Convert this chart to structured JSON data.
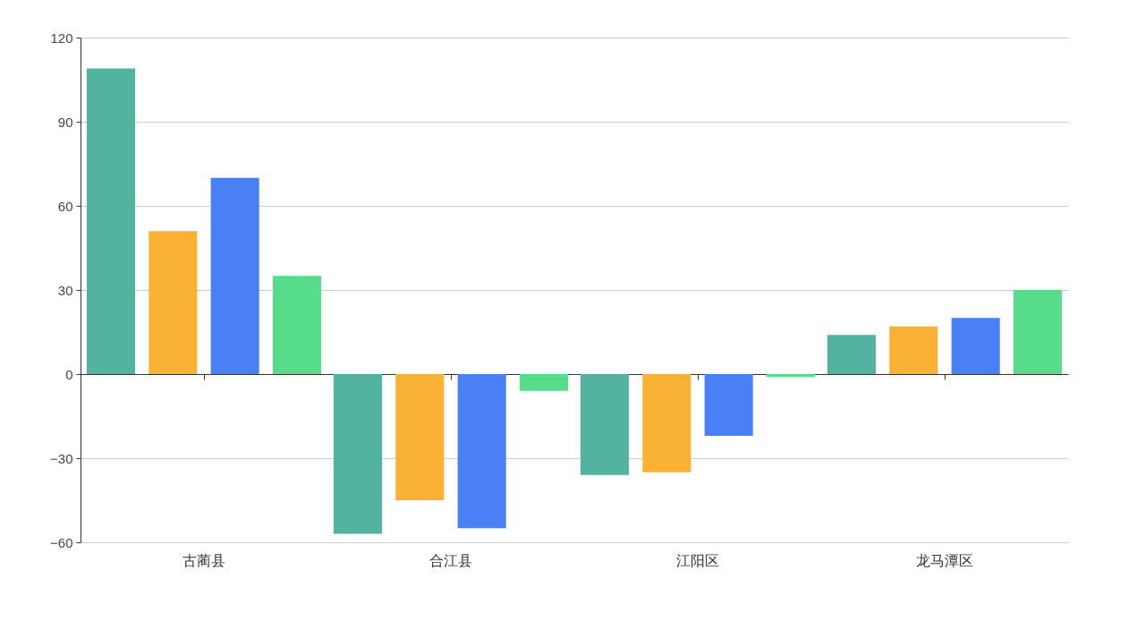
{
  "chart_data": {
    "type": "bar",
    "categories": [
      "古蔺县",
      "合江县",
      "江阳区",
      "龙马潭区"
    ],
    "series": [
      {
        "color": "#52b3a0",
        "values": [
          109,
          -57,
          -36,
          14
        ]
      },
      {
        "color": "#f9b233",
        "values": [
          51,
          -45,
          -35,
          17
        ]
      },
      {
        "color": "#4a80f5",
        "values": [
          70,
          -55,
          -22,
          20
        ]
      },
      {
        "color": "#57dc8a",
        "values": [
          35,
          -6,
          -1,
          30
        ]
      }
    ],
    "ylim": [
      -60,
      120
    ],
    "yticks": [
      -60,
      -30,
      0,
      30,
      60,
      90,
      120
    ],
    "grid": "y"
  }
}
